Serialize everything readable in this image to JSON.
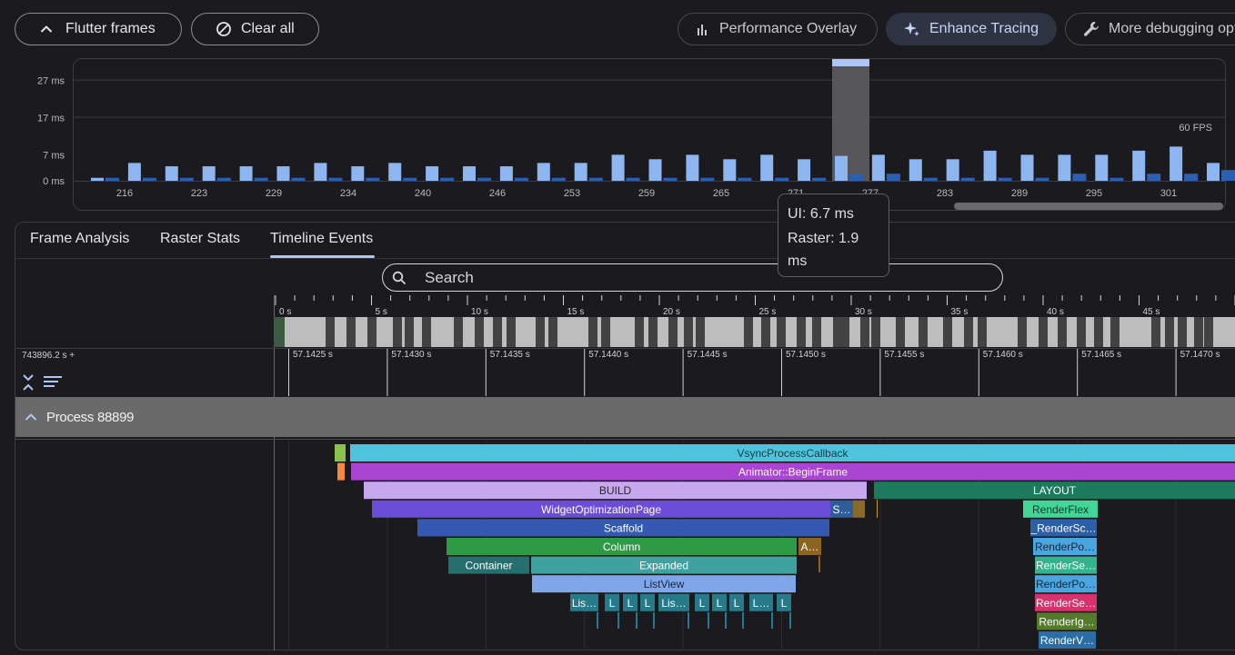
{
  "toolbar": {
    "flutter_frames": "Flutter frames",
    "clear_all": "Clear all",
    "performance_overlay": "Performance Overlay",
    "enhance_tracing": "Enhance Tracing",
    "more_debugging": "More debugging options"
  },
  "chart_data": {
    "type": "bar",
    "y_ticks": [
      "27 ms",
      "17 ms",
      "7 ms",
      "0 ms"
    ],
    "fps_label": "60 FPS",
    "x_ticks": [
      "216",
      "223",
      "229",
      "234",
      "240",
      "246",
      "253",
      "259",
      "265",
      "271",
      "277",
      "283",
      "289",
      "295",
      "301"
    ],
    "ylim": [
      0,
      32
    ],
    "series": [
      {
        "name": "UI",
        "values": [
          0.8,
          4.8,
          3.9,
          3.9,
          3.9,
          3.9,
          4.8,
          3.9,
          4.8,
          3.9,
          3.9,
          3.9,
          4.8,
          4.8,
          7.0,
          5.8,
          7.0,
          5.8,
          7.0,
          5.8,
          6.7,
          7.0,
          5.8,
          5.8,
          8.1,
          7.0,
          7.0,
          7.0,
          8.1,
          9.2,
          4.8,
          0
        ]
      },
      {
        "name": "Raster",
        "values": [
          0.8,
          0.8,
          0.8,
          0.8,
          0.8,
          0.8,
          0.8,
          0.8,
          0.8,
          0.8,
          0.8,
          0.8,
          0.8,
          0.8,
          0.8,
          0.8,
          0.8,
          0.8,
          0.8,
          0.8,
          1.9,
          1.9,
          0.8,
          0.8,
          0.8,
          0.8,
          1.9,
          0.8,
          1.9,
          1.9,
          2.9,
          0.8
        ]
      }
    ],
    "selected_frame_index": 20,
    "grid": true
  },
  "tooltip": {
    "ui": "UI: 6.7 ms",
    "raster": "Raster: 1.9 ms"
  },
  "tabs": [
    "Frame Analysis",
    "Raster Stats",
    "Timeline Events"
  ],
  "active_tab": "Timeline Events",
  "search": {
    "placeholder": "Search"
  },
  "timeline": {
    "overview_ticks": [
      "0 s",
      "5 s",
      "10 s",
      "15 s",
      "20 s",
      "25 s",
      "30 s",
      "35 s",
      "40 s",
      "45 s"
    ],
    "base_time": "743896.2 s +",
    "detail_ticks": [
      "57.1425 s",
      "57.1430 s",
      "57.1435 s",
      "57.1440 s",
      "57.1445 s",
      "57.1450 s",
      "57.1455 s",
      "57.1460 s",
      "57.1465 s",
      "57.1470 s"
    ],
    "process": "Process 88899",
    "events": [
      {
        "name": "VsyncProcessCallback",
        "color": "#4dc4dc",
        "text_color": "#1b3a45",
        "row": 0,
        "start": 385,
        "end": 1358
      },
      {
        "name": "",
        "color": "#8bc34a",
        "text_color": "#000",
        "row": 0,
        "start": 368,
        "end": 380
      },
      {
        "name": "Animator::BeginFrame",
        "color": "#a945d1",
        "text_color": "#ffffff",
        "row": 1,
        "start": 386,
        "end": 1358
      },
      {
        "name": "",
        "color": "#f58b3a",
        "text_color": "#000",
        "row": 1,
        "start": 371,
        "end": 379
      },
      {
        "name": "BUILD",
        "color": "#c7a8ef",
        "text_color": "#2a2a2a",
        "row": 2,
        "start": 400,
        "end": 953
      },
      {
        "name": "LAYOUT",
        "color": "#1e7a5c",
        "text_color": "#ffffff",
        "row": 2,
        "start": 961,
        "end": 1358
      },
      {
        "name": "WidgetOptimizationPage",
        "color": "#6b4ed8",
        "text_color": "#ffffff",
        "row": 3,
        "start": 409,
        "end": 913
      },
      {
        "name": "S…",
        "color": "#2d5d9a",
        "text_color": "#ffffff",
        "row": 3,
        "start": 913,
        "end": 938
      },
      {
        "name": "",
        "color": "#8a6a2a",
        "text_color": "#000",
        "row": 3,
        "start": 938,
        "end": 951
      },
      {
        "name": "RenderFlex",
        "color": "#40d796",
        "text_color": "#14302a",
        "row": 3,
        "start": 1125,
        "end": 1207
      },
      {
        "name": "Scaffold",
        "color": "#3559b2",
        "text_color": "#ffffff",
        "row": 4,
        "start": 459,
        "end": 912
      },
      {
        "name": "_RenderSc…",
        "color": "#2d5fa8",
        "text_color": "#ffffff",
        "row": 4,
        "start": 1133,
        "end": 1206
      },
      {
        "name": "Column",
        "color": "#2f9a45",
        "text_color": "#ffffff",
        "row": 5,
        "start": 491,
        "end": 876
      },
      {
        "name": "A…",
        "color": "#8a6420",
        "text_color": "#ffffff",
        "row": 5,
        "start": 878,
        "end": 903
      },
      {
        "name": "RenderPo…",
        "color": "#4aa6de",
        "text_color": "#14253a",
        "row": 5,
        "start": 1136,
        "end": 1206
      },
      {
        "name": "Container",
        "color": "#256f6e",
        "text_color": "#ffffff",
        "row": 6,
        "start": 493,
        "end": 582
      },
      {
        "name": "Expanded",
        "color": "#3fa2a0",
        "text_color": "#ffffff",
        "row": 6,
        "start": 584,
        "end": 876
      },
      {
        "name": "RenderSe…",
        "color": "#34b38c",
        "text_color": "#ffffff",
        "row": 6,
        "start": 1138,
        "end": 1206
      },
      {
        "name": "ListView",
        "color": "#7ea6e8",
        "text_color": "#1a2640",
        "row": 7,
        "start": 585,
        "end": 875
      },
      {
        "name": "RenderPo…",
        "color": "#4aa6de",
        "text_color": "#14253a",
        "row": 7,
        "start": 1138,
        "end": 1206
      },
      {
        "name": "Lis…",
        "color": "#267a8a",
        "text_color": "#ffffff",
        "row": 8,
        "start": 627,
        "end": 658
      },
      {
        "name": "L",
        "color": "#267a8a",
        "text_color": "#ffffff",
        "row": 8,
        "start": 665,
        "end": 681
      },
      {
        "name": "L",
        "color": "#267a8a",
        "text_color": "#ffffff",
        "row": 8,
        "start": 685,
        "end": 701
      },
      {
        "name": "L",
        "color": "#267a8a",
        "text_color": "#ffffff",
        "row": 8,
        "start": 704,
        "end": 720
      },
      {
        "name": "Lis…",
        "color": "#267a8a",
        "text_color": "#ffffff",
        "row": 8,
        "start": 724,
        "end": 758
      },
      {
        "name": "L",
        "color": "#267a8a",
        "text_color": "#ffffff",
        "row": 8,
        "start": 764,
        "end": 780
      },
      {
        "name": "L",
        "color": "#267a8a",
        "text_color": "#ffffff",
        "row": 8,
        "start": 783,
        "end": 799
      },
      {
        "name": "L",
        "color": "#267a8a",
        "text_color": "#ffffff",
        "row": 8,
        "start": 802,
        "end": 818
      },
      {
        "name": "L…",
        "color": "#267a8a",
        "text_color": "#ffffff",
        "row": 8,
        "start": 824,
        "end": 850
      },
      {
        "name": "L",
        "color": "#267a8a",
        "text_color": "#ffffff",
        "row": 8,
        "start": 854,
        "end": 870
      },
      {
        "name": "RenderSe…",
        "color": "#d6336c",
        "text_color": "#ffffff",
        "row": 8,
        "start": 1138,
        "end": 1206
      },
      {
        "name": "RenderIg…",
        "color": "#557a2c",
        "text_color": "#ffffff",
        "row": 9,
        "start": 1140,
        "end": 1206
      },
      {
        "name": "RenderV…",
        "color": "#2a6ea8",
        "text_color": "#ffffff",
        "row": 10,
        "start": 1142,
        "end": 1205
      }
    ]
  }
}
